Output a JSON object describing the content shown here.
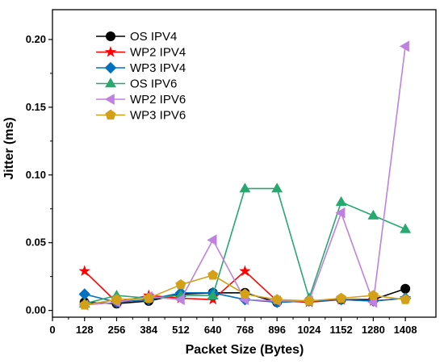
{
  "chart_data": {
    "type": "line",
    "xlabel": "Packet Size (Bytes)",
    "ylabel": "Jitter (ms)",
    "x": [
      128,
      256,
      384,
      512,
      640,
      768,
      896,
      1024,
      1152,
      1280,
      1408
    ],
    "xticks": [
      "0",
      "128",
      "256",
      "384",
      "512",
      "640",
      "768",
      "896",
      "1024",
      "1152",
      "1280",
      "1408"
    ],
    "yticks": [
      "0.00",
      "0.05",
      "0.10",
      "0.15",
      "0.20"
    ],
    "xlim": [
      0,
      1530
    ],
    "ylim": [
      -0.005,
      0.222
    ],
    "legend_position": "top-left",
    "series": [
      {
        "name": "OS IPV4",
        "color": "#000000",
        "marker": "circle",
        "values": [
          0.006,
          0.005,
          0.007,
          0.012,
          0.013,
          0.013,
          0.006,
          0.007,
          0.008,
          0.008,
          0.016
        ]
      },
      {
        "name": "WP2 IPV4",
        "color": "#ff0000",
        "marker": "star",
        "values": [
          0.029,
          0.006,
          0.011,
          0.009,
          0.008,
          0.029,
          0.007,
          0.006,
          0.008,
          0.007,
          0.009
        ]
      },
      {
        "name": "WP3 IPV4",
        "color": "#0070c0",
        "marker": "diamond",
        "values": [
          0.012,
          0.006,
          0.008,
          0.013,
          0.013,
          0.008,
          0.006,
          0.007,
          0.008,
          0.007,
          0.009
        ]
      },
      {
        "name": "OS IPV6",
        "color": "#26a86f",
        "marker": "triangle-up",
        "values": [
          0.005,
          0.011,
          0.009,
          0.011,
          0.011,
          0.09,
          0.09,
          0.009,
          0.08,
          0.07,
          0.06
        ]
      },
      {
        "name": "WP2 IPV6",
        "color": "#c080e0",
        "marker": "triangle-left",
        "values": [
          0.004,
          0.006,
          0.01,
          0.008,
          0.052,
          0.008,
          0.007,
          0.007,
          0.072,
          0.006,
          0.195
        ]
      },
      {
        "name": "WP3 IPV6",
        "color": "#d4a017",
        "marker": "pentagon",
        "values": [
          0.004,
          0.008,
          0.009,
          0.019,
          0.026,
          0.012,
          0.008,
          0.007,
          0.009,
          0.011,
          0.008
        ]
      }
    ]
  }
}
